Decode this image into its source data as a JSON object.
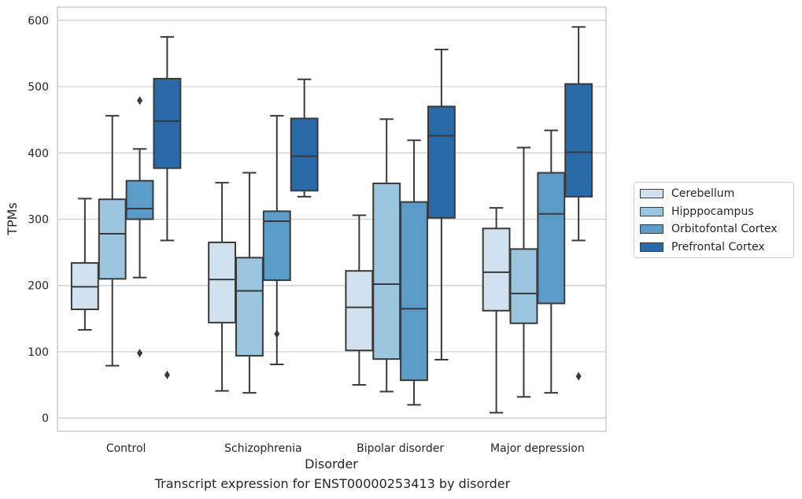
{
  "chart_data": {
    "type": "box",
    "xlabel": "Disorder",
    "ylabel": "TPMs",
    "ylim": [
      -20,
      620
    ],
    "yticks": [
      0,
      100,
      200,
      300,
      400,
      500,
      600
    ],
    "grid": "horizontal",
    "legend_position": "right",
    "categories": [
      "Control",
      "Schizophrenia",
      "Bipolar disorder",
      "Major depression"
    ],
    "series": [
      {
        "name": "Cerebellum",
        "color": "#d1e1ef",
        "boxes": [
          {
            "whislo": 133,
            "q1": 164,
            "med": 198,
            "q3": 234,
            "whishi": 331,
            "fliers": []
          },
          {
            "whislo": 41,
            "q1": 144,
            "med": 209,
            "q3": 265,
            "whishi": 355,
            "fliers": []
          },
          {
            "whislo": 50,
            "q1": 102,
            "med": 167,
            "q3": 222,
            "whishi": 306,
            "fliers": []
          },
          {
            "whislo": 8,
            "q1": 162,
            "med": 220,
            "q3": 286,
            "whishi": 317,
            "fliers": []
          }
        ]
      },
      {
        "name": "Hipppocampus",
        "color": "#9cc5e0",
        "boxes": [
          {
            "whislo": 79,
            "q1": 210,
            "med": 278,
            "q3": 330,
            "whishi": 456,
            "fliers": []
          },
          {
            "whislo": 38,
            "q1": 94,
            "med": 192,
            "q3": 242,
            "whishi": 370,
            "fliers": []
          },
          {
            "whislo": 40,
            "q1": 89,
            "med": 202,
            "q3": 354,
            "whishi": 451,
            "fliers": []
          },
          {
            "whislo": 32,
            "q1": 143,
            "med": 188,
            "q3": 255,
            "whishi": 408,
            "fliers": []
          }
        ]
      },
      {
        "name": "Orbitofontal Cortex",
        "color": "#5a9bc7",
        "boxes": [
          {
            "whislo": 212,
            "q1": 300,
            "med": 316,
            "q3": 358,
            "whishi": 406,
            "fliers": [
              479,
              98
            ]
          },
          {
            "whislo": 81,
            "q1": 208,
            "med": 297,
            "q3": 312,
            "whishi": 456,
            "fliers": [
              127
            ]
          },
          {
            "whislo": 20,
            "q1": 57,
            "med": 165,
            "q3": 326,
            "whishi": 419,
            "fliers": []
          },
          {
            "whislo": 38,
            "q1": 173,
            "med": 308,
            "q3": 370,
            "whishi": 434,
            "fliers": []
          }
        ]
      },
      {
        "name": "Prefrontal Cortex",
        "color": "#2b6aa8",
        "boxes": [
          {
            "whislo": 268,
            "q1": 377,
            "med": 448,
            "q3": 512,
            "whishi": 575,
            "fliers": [
              65
            ]
          },
          {
            "whislo": 334,
            "q1": 343,
            "med": 395,
            "q3": 452,
            "whishi": 511,
            "fliers": []
          },
          {
            "whislo": 88,
            "q1": 302,
            "med": 426,
            "q3": 470,
            "whishi": 556,
            "fliers": []
          },
          {
            "whislo": 268,
            "q1": 334,
            "med": 401,
            "q3": 504,
            "whishi": 590,
            "fliers": [
              63
            ]
          }
        ]
      }
    ]
  },
  "caption": "Transcript expression for ENST00000253413 by disorder"
}
